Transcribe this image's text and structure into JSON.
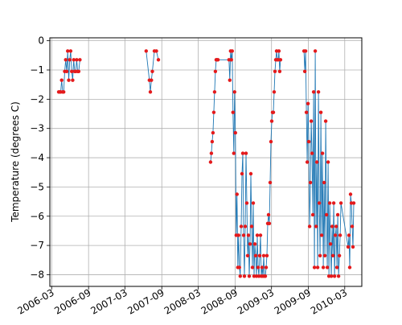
{
  "chart_data": {
    "type": "line",
    "title": "",
    "xlabel": "",
    "ylabel": "Temperature (degrees C)",
    "x_tick_labels": [
      "2006-03",
      "2006-09",
      "2007-03",
      "2007-09",
      "2008-03",
      "2008-09",
      "2009-03",
      "2009-09",
      "2010-03"
    ],
    "x_ticks": [
      "2006-03-01",
      "2006-09-01",
      "2007-03-01",
      "2007-09-01",
      "2008-03-01",
      "2008-09-01",
      "2009-03-01",
      "2009-09-01",
      "2010-03-01"
    ],
    "y_tick_labels": [
      "0",
      "−1",
      "−2",
      "−3",
      "−4",
      "−5",
      "−6",
      "−7",
      "−8"
    ],
    "y_ticks": [
      0,
      -1,
      -2,
      -3,
      -4,
      -5,
      -6,
      -7,
      -8
    ],
    "xlim": [
      "2006-02-20",
      "2010-05-25"
    ],
    "ylim": [
      -8.4,
      0.1
    ],
    "grid": true,
    "line_color": "#1f77b4",
    "marker_color": "#e41a1c",
    "series": [
      {
        "points": [
          [
            "2006-04-05",
            -1.75
          ],
          [
            "2006-04-10",
            -1.75
          ],
          [
            "2006-04-15",
            -1.75
          ],
          [
            "2006-04-20",
            -1.35
          ],
          [
            "2006-04-25",
            -1.75
          ],
          [
            "2006-04-30",
            -1.75
          ],
          [
            "2006-05-05",
            -1.05
          ],
          [
            "2006-05-10",
            -0.65
          ],
          [
            "2006-05-15",
            -1.05
          ],
          [
            "2006-05-20",
            -0.35
          ],
          [
            "2006-05-25",
            -1.35
          ],
          [
            "2006-05-30",
            -0.65
          ],
          [
            "2006-06-04",
            -0.35
          ],
          [
            "2006-06-09",
            -1.05
          ],
          [
            "2006-06-14",
            -1.35
          ],
          [
            "2006-06-19",
            -0.65
          ],
          [
            "2006-06-24",
            -1.05
          ],
          [
            "2006-06-29",
            -1.05
          ],
          [
            "2006-07-04",
            -0.65
          ],
          [
            "2006-07-09",
            -1.05
          ],
          [
            "2006-07-14",
            -1.05
          ],
          [
            "2006-07-20",
            -0.65
          ],
          null,
          [
            "2007-06-15",
            -0.35
          ],
          [
            "2007-07-01",
            -1.35
          ],
          [
            "2007-07-06",
            -1.75
          ],
          [
            "2007-07-11",
            -1.35
          ],
          [
            "2007-07-16",
            -1.05
          ],
          [
            "2007-07-26",
            -0.35
          ],
          [
            "2007-08-05",
            -0.35
          ],
          [
            "2007-08-15",
            -0.65
          ],
          null,
          [
            "2008-05-01",
            -4.15
          ],
          [
            "2008-05-05",
            -3.85
          ],
          [
            "2008-05-09",
            -3.45
          ],
          [
            "2008-05-13",
            -3.15
          ],
          [
            "2008-05-17",
            -2.45
          ],
          [
            "2008-05-21",
            -1.75
          ],
          [
            "2008-05-25",
            -1.05
          ],
          [
            "2008-05-29",
            -0.65
          ],
          [
            "2008-06-02",
            -0.65
          ],
          [
            "2008-06-07",
            -0.65
          ],
          [
            "2008-08-01",
            -0.65
          ],
          [
            "2008-08-05",
            -1.35
          ],
          [
            "2008-08-09",
            -0.35
          ],
          [
            "2008-08-13",
            -0.65
          ],
          [
            "2008-08-17",
            -0.35
          ],
          [
            "2008-08-21",
            -2.45
          ],
          [
            "2008-08-25",
            -3.85
          ],
          [
            "2008-08-29",
            -1.75
          ],
          [
            "2008-09-02",
            -3.15
          ],
          [
            "2008-09-06",
            -6.65
          ],
          [
            "2008-09-10",
            -5.25
          ],
          [
            "2008-09-14",
            -7.75
          ],
          [
            "2008-09-18",
            -6.65
          ],
          [
            "2008-09-22",
            -7.75
          ],
          [
            "2008-09-26",
            -8.05
          ],
          [
            "2008-10-01",
            -6.35
          ],
          [
            "2008-10-05",
            -4.55
          ],
          [
            "2008-10-09",
            -3.85
          ],
          [
            "2008-10-13",
            -6.65
          ],
          [
            "2008-10-17",
            -8.05
          ],
          [
            "2008-10-21",
            -6.35
          ],
          [
            "2008-10-25",
            -3.85
          ],
          [
            "2008-10-29",
            -5.55
          ],
          [
            "2008-11-02",
            -7.35
          ],
          [
            "2008-11-06",
            -6.65
          ],
          [
            "2008-11-10",
            -8.05
          ],
          [
            "2008-11-14",
            -6.95
          ],
          [
            "2008-11-18",
            -4.55
          ],
          [
            "2008-11-22",
            -6.35
          ],
          [
            "2008-11-26",
            -7.75
          ],
          [
            "2008-11-30",
            -5.55
          ],
          [
            "2008-12-04",
            -8.05
          ],
          [
            "2008-12-08",
            -6.95
          ],
          [
            "2008-12-12",
            -7.35
          ],
          [
            "2008-12-16",
            -8.05
          ],
          [
            "2008-12-20",
            -6.65
          ],
          [
            "2008-12-24",
            -7.75
          ],
          [
            "2008-12-28",
            -8.05
          ],
          [
            "2009-01-01",
            -7.35
          ],
          [
            "2009-01-05",
            -6.65
          ],
          [
            "2009-01-09",
            -8.05
          ],
          [
            "2009-01-13",
            -7.75
          ],
          [
            "2009-01-17",
            -8.05
          ],
          [
            "2009-01-21",
            -7.35
          ],
          [
            "2009-01-25",
            -8.05
          ],
          [
            "2009-01-29",
            -8.05
          ],
          [
            "2009-02-02",
            -7.75
          ],
          [
            "2009-02-06",
            -7.35
          ],
          [
            "2009-02-10",
            -6.25
          ],
          [
            "2009-02-14",
            -5.95
          ],
          [
            "2009-02-18",
            -6.25
          ],
          [
            "2009-02-22",
            -4.85
          ],
          [
            "2009-02-26",
            -3.45
          ],
          [
            "2009-03-02",
            -2.75
          ],
          [
            "2009-03-06",
            -2.45
          ],
          [
            "2009-03-10",
            -2.45
          ],
          [
            "2009-03-14",
            -1.75
          ],
          [
            "2009-03-18",
            -1.05
          ],
          [
            "2009-03-22",
            -0.65
          ],
          [
            "2009-03-26",
            -0.35
          ],
          [
            "2009-03-30",
            -0.65
          ],
          [
            "2009-04-03",
            -0.65
          ],
          [
            "2009-04-07",
            -0.35
          ],
          [
            "2009-04-11",
            -1.05
          ],
          [
            "2009-04-15",
            -0.65
          ],
          null,
          [
            "2009-08-10",
            -0.35
          ],
          [
            "2009-08-14",
            -1.05
          ],
          [
            "2009-08-18",
            -0.35
          ],
          [
            "2009-08-22",
            -2.45
          ],
          [
            "2009-08-26",
            -4.15
          ],
          [
            "2009-08-30",
            -2.15
          ],
          [
            "2009-09-03",
            -3.45
          ],
          [
            "2009-09-07",
            -6.35
          ],
          [
            "2009-09-11",
            -4.85
          ],
          [
            "2009-09-15",
            -2.75
          ],
          [
            "2009-09-19",
            -3.85
          ],
          [
            "2009-09-23",
            -5.95
          ],
          [
            "2009-09-27",
            -1.75
          ],
          [
            "2009-10-01",
            -7.75
          ],
          [
            "2009-10-05",
            -0.35
          ],
          [
            "2009-10-09",
            -6.35
          ],
          [
            "2009-10-13",
            -4.15
          ],
          [
            "2009-10-17",
            -7.75
          ],
          [
            "2009-10-21",
            -1.75
          ],
          [
            "2009-10-25",
            -5.55
          ],
          [
            "2009-10-29",
            -7.35
          ],
          [
            "2009-11-02",
            -2.45
          ],
          [
            "2009-11-06",
            -6.65
          ],
          [
            "2009-11-10",
            -3.85
          ],
          [
            "2009-11-14",
            -7.75
          ],
          [
            "2009-11-18",
            -4.85
          ],
          [
            "2009-11-22",
            -7.35
          ],
          [
            "2009-11-26",
            -2.75
          ],
          [
            "2009-11-30",
            -5.95
          ],
          [
            "2009-12-04",
            -7.75
          ],
          [
            "2009-12-08",
            -4.15
          ],
          [
            "2009-12-12",
            -8.05
          ],
          [
            "2009-12-16",
            -5.55
          ],
          [
            "2009-12-20",
            -6.95
          ],
          [
            "2009-12-24",
            -8.05
          ],
          [
            "2009-12-28",
            -6.35
          ],
          [
            "2010-01-01",
            -7.35
          ],
          [
            "2010-01-05",
            -5.55
          ],
          [
            "2010-01-09",
            -8.05
          ],
          [
            "2010-01-13",
            -6.65
          ],
          [
            "2010-01-17",
            -6.35
          ],
          [
            "2010-01-21",
            -7.75
          ],
          [
            "2010-01-25",
            -5.95
          ],
          [
            "2010-01-29",
            -8.05
          ],
          [
            "2010-02-02",
            -7.35
          ],
          [
            "2010-02-06",
            -6.65
          ],
          [
            "2010-02-10",
            -5.55
          ],
          [
            "2010-03-18",
            -7.05
          ],
          [
            "2010-03-22",
            -6.65
          ],
          [
            "2010-03-26",
            -7.75
          ],
          [
            "2010-03-30",
            -5.25
          ],
          [
            "2010-04-03",
            -5.55
          ],
          [
            "2010-04-07",
            -6.35
          ],
          [
            "2010-04-11",
            -7.05
          ],
          [
            "2010-04-15",
            -5.55
          ]
        ]
      }
    ]
  }
}
